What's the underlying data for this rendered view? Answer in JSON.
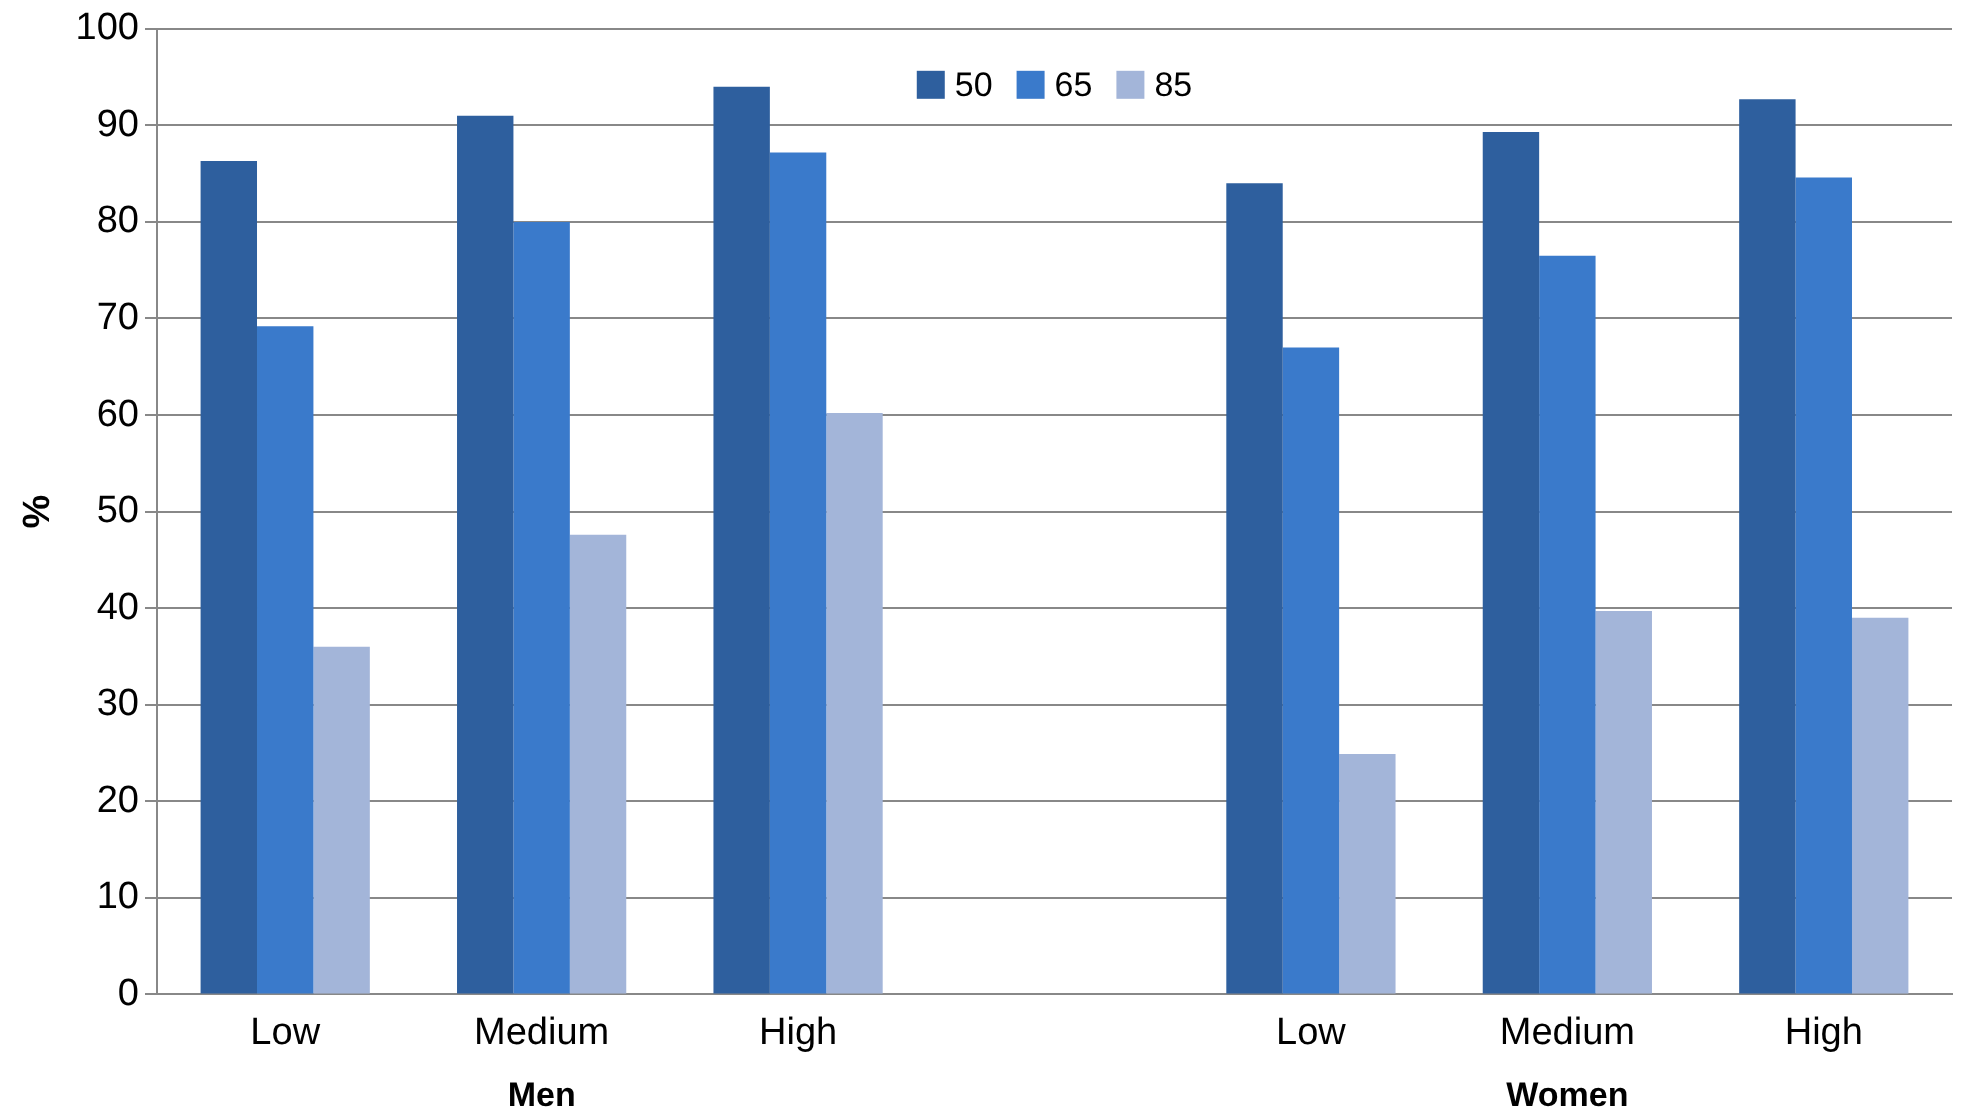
{
  "chart_data": {
    "type": "bar",
    "ylabel": "%",
    "categories": [
      "Low",
      "Medium",
      "High",
      null,
      "Low",
      "Medium",
      "High"
    ],
    "series": [
      {
        "name": "50",
        "color": "#2e5f9e",
        "values": [
          86.3,
          91,
          94,
          null,
          84,
          89.3,
          92.7
        ]
      },
      {
        "name": "65",
        "color": "#3a7acb",
        "values": [
          69.2,
          80,
          87.2,
          null,
          67,
          76.5,
          84.6
        ]
      },
      {
        "name": "85",
        "color": "#a3b5d9",
        "values": [
          36,
          47.6,
          60.2,
          null,
          24.9,
          39.7,
          39
        ]
      }
    ],
    "ylim": [
      0,
      100
    ],
    "yticks": [
      0,
      10,
      20,
      30,
      40,
      50,
      60,
      70,
      80,
      90,
      100
    ],
    "grid": "y",
    "legend": "top",
    "annotations": [
      "Men",
      "Women"
    ]
  }
}
